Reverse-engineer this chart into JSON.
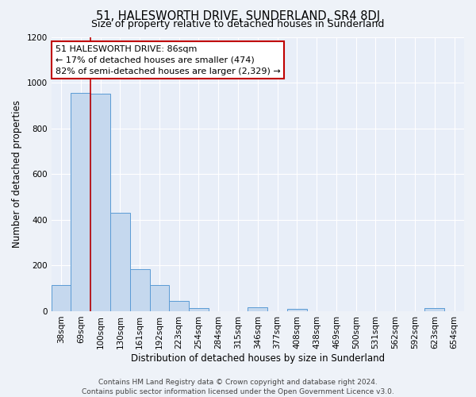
{
  "title": "51, HALESWORTH DRIVE, SUNDERLAND, SR4 8DJ",
  "subtitle": "Size of property relative to detached houses in Sunderland",
  "xlabel": "Distribution of detached houses by size in Sunderland",
  "ylabel": "Number of detached properties",
  "categories": [
    "38sqm",
    "69sqm",
    "100sqm",
    "130sqm",
    "161sqm",
    "192sqm",
    "223sqm",
    "254sqm",
    "284sqm",
    "315sqm",
    "346sqm",
    "377sqm",
    "408sqm",
    "438sqm",
    "469sqm",
    "500sqm",
    "531sqm",
    "562sqm",
    "592sqm",
    "623sqm",
    "654sqm"
  ],
  "values": [
    115,
    955,
    950,
    430,
    185,
    115,
    45,
    15,
    0,
    0,
    18,
    0,
    12,
    0,
    0,
    0,
    0,
    0,
    0,
    15,
    0
  ],
  "bar_color": "#c5d8ee",
  "bar_edge_color": "#5b9bd5",
  "vline_x": 1.5,
  "vline_color": "#c00000",
  "annotation_title": "51 HALESWORTH DRIVE: 86sqm",
  "annotation_line1": "← 17% of detached houses are smaller (474)",
  "annotation_line2": "82% of semi-detached houses are larger (2,329) →",
  "annotation_box_facecolor": "#ffffff",
  "annotation_box_edgecolor": "#c00000",
  "ylim": [
    0,
    1200
  ],
  "yticks": [
    0,
    200,
    400,
    600,
    800,
    1000,
    1200
  ],
  "footer_line1": "Contains HM Land Registry data © Crown copyright and database right 2024.",
  "footer_line2": "Contains public sector information licensed under the Open Government Licence v3.0.",
  "fig_facecolor": "#eef2f8",
  "plot_facecolor": "#e8eef8",
  "grid_color": "#ffffff",
  "title_fontsize": 10.5,
  "subtitle_fontsize": 9,
  "axis_label_fontsize": 8.5,
  "tick_fontsize": 7.5,
  "footer_fontsize": 6.5,
  "annotation_fontsize": 8
}
